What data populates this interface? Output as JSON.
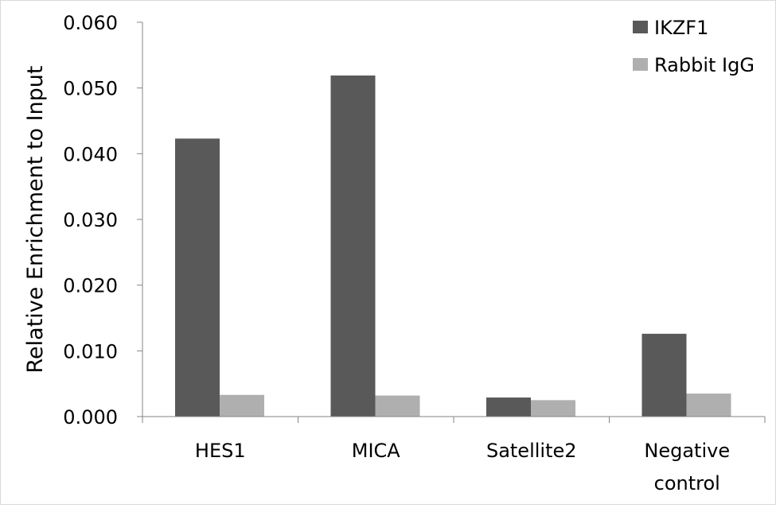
{
  "chart_data": {
    "type": "bar",
    "title": "",
    "xlabel": "",
    "ylabel": "Relative Enrichment to Input",
    "ylim": [
      0,
      0.06
    ],
    "yticks": [
      "0.000",
      "0.010",
      "0.020",
      "0.030",
      "0.040",
      "0.050",
      "0.060"
    ],
    "categories": [
      [
        "HES1"
      ],
      [
        "MICA"
      ],
      [
        "Satellite2"
      ],
      [
        "Negative",
        "control"
      ]
    ],
    "series": [
      {
        "name": "IKZF1",
        "color": "#595959",
        "values": [
          0.0423,
          0.0519,
          0.0029,
          0.0126
        ]
      },
      {
        "name": "Rabbit IgG",
        "color": "#afafaf",
        "values": [
          0.0033,
          0.0032,
          0.0025,
          0.0035
        ]
      }
    ],
    "legend_position": "top-right",
    "grid": false
  }
}
